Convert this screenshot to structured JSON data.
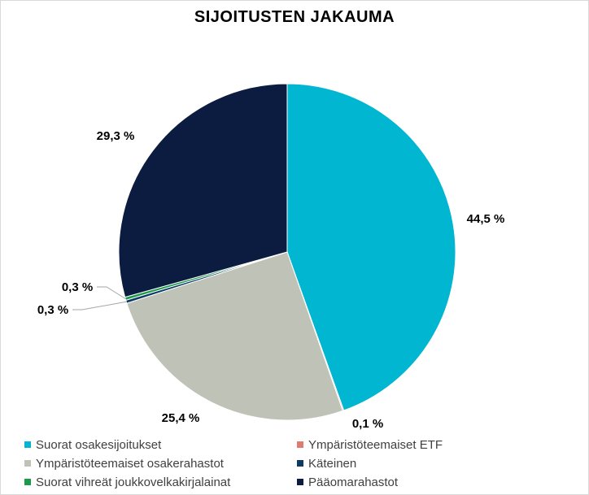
{
  "chart_data": {
    "type": "pie",
    "title": "SIJOITUSTEN JAKAUMA",
    "slices": [
      {
        "name": "Suorat osakesijoitukset",
        "value": 44.5,
        "label": "44,5 %",
        "color": "#00b6d1"
      },
      {
        "name": "Ympäristöteemaiset ETF",
        "value": 0.1,
        "label": "0,1 %",
        "color": "#e07b6e"
      },
      {
        "name": "Ympäristöteemaiset osakerahastot",
        "value": 25.4,
        "label": "25,4 %",
        "color": "#bfc2b7"
      },
      {
        "name": "Käteinen",
        "value": 0.3,
        "label": "0,3 %",
        "color": "#0f3a63"
      },
      {
        "name": "Suorat vihreät joukkovelkakirjalainat",
        "value": 0.3,
        "label": "0,3 %",
        "color": "#1a9a4a"
      },
      {
        "name": "Pääomarahastot",
        "value": 29.3,
        "label": "29,3 %",
        "color": "#0c1c40"
      }
    ],
    "legend_position": "bottom",
    "start_angle": "top",
    "direction": "clockwise"
  }
}
